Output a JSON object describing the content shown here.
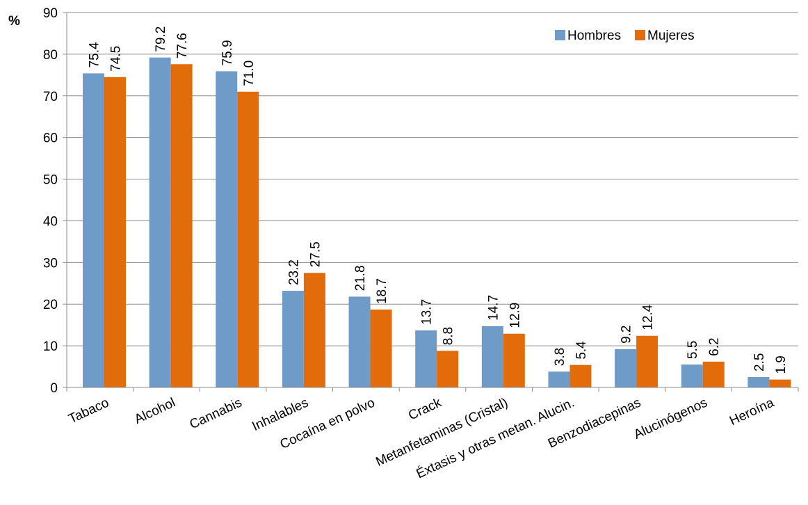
{
  "chart_data": {
    "type": "bar",
    "ylabel": "%",
    "xlabel": "",
    "title": "",
    "ylim": [
      0,
      90
    ],
    "yticks": [
      0,
      10,
      20,
      30,
      40,
      50,
      60,
      70,
      80,
      90
    ],
    "grid": true,
    "legend_position": "top-right",
    "categories": [
      "Tabaco",
      "Alcohol",
      "Cannabis",
      "Inhalables",
      "Cocaína en polvo",
      "Crack",
      "Metanfetaminas (Cristal)",
      "Éxtasis y otras metan. Alucin.",
      "Benzodiacepinas",
      "Alucinógenos",
      "Heroína"
    ],
    "series": [
      {
        "name": "Hombres",
        "color": "#6F9BC8",
        "values": [
          75.4,
          79.2,
          75.9,
          23.2,
          21.8,
          13.7,
          14.7,
          3.8,
          9.2,
          5.5,
          2.5
        ],
        "labels": [
          "75.4",
          "79.2",
          "75.9",
          "23.2",
          "21.8",
          "13.7",
          "14.7",
          "3.8",
          "9.2",
          "5.5",
          "2.5"
        ]
      },
      {
        "name": "Mujeres",
        "color": "#E36C0A",
        "values": [
          74.5,
          77.6,
          71.0,
          27.5,
          18.7,
          8.8,
          12.9,
          5.4,
          12.4,
          6.2,
          1.9
        ],
        "labels": [
          "74.5",
          "77.6",
          "71.0",
          "27.5",
          "18.7",
          "8.8",
          "12.9",
          "5.4",
          "12.4",
          "6.2",
          "1.9"
        ]
      }
    ]
  }
}
